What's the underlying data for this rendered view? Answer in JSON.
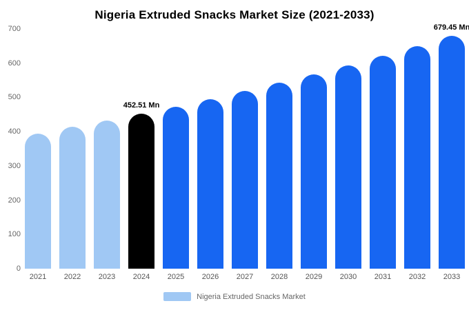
{
  "chart_data": {
    "type": "bar",
    "title": "Nigeria Extruded Snacks Market Size (2021-2033)",
    "unit": "Mn",
    "categories": [
      "2021",
      "2022",
      "2023",
      "2024",
      "2025",
      "2026",
      "2027",
      "2028",
      "2029",
      "2030",
      "2031",
      "2032",
      "2033"
    ],
    "values": [
      395.1,
      413.4,
      432.5,
      452.51,
      473.4,
      495.3,
      518.2,
      542.1,
      567.2,
      593.4,
      620.8,
      649.5,
      679.45
    ],
    "bar_color_keys": [
      "historical",
      "historical",
      "historical",
      "base",
      "forecast",
      "forecast",
      "forecast",
      "forecast",
      "forecast",
      "forecast",
      "forecast",
      "forecast",
      "forecast"
    ],
    "colors": {
      "historical": "#a0c8f4",
      "base": "#000000",
      "forecast": "#1766f2"
    },
    "data_labels": {
      "2024": "452.51 Mn",
      "2033": "679.45 Mn"
    },
    "ylim": [
      0,
      700
    ],
    "yticks": [
      0,
      100,
      200,
      300,
      400,
      500,
      600,
      700
    ],
    "grid": false,
    "legend": {
      "label": "Nigeria Extruded Snacks Market",
      "swatch_key": "historical",
      "position": "bottom"
    }
  }
}
